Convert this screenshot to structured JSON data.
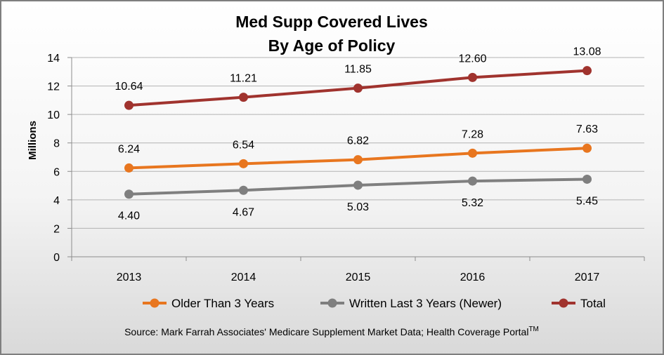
{
  "chart_data": {
    "type": "line",
    "title": "Med Supp Covered Lives",
    "subtitle": "By Age of Policy",
    "ylabel": "Millions",
    "xlabel": "",
    "ylim": [
      0,
      14
    ],
    "yticks": [
      "0",
      "2",
      "4",
      "6",
      "8",
      "10",
      "12",
      "14"
    ],
    "grid": true,
    "legend_position": "bottom",
    "categories": [
      "2013",
      "2014",
      "2015",
      "2016",
      "2017"
    ],
    "series": [
      {
        "name": "Older Than 3 Years",
        "color": "#e8761f",
        "values": [
          6.24,
          6.54,
          6.82,
          7.28,
          7.63
        ],
        "labels": [
          "6.24",
          "6.54",
          "6.82",
          "7.28",
          "7.63"
        ],
        "label_position": "above"
      },
      {
        "name": "Written Last 3 Years (Newer)",
        "color": "#7f7f7f",
        "values": [
          4.4,
          4.67,
          5.03,
          5.32,
          5.45
        ],
        "labels": [
          "4.40",
          "4.67",
          "5.03",
          "5.32",
          "5.45"
        ],
        "label_position": "below"
      },
      {
        "name": "Total",
        "color": "#a0332e",
        "values": [
          10.64,
          11.21,
          11.85,
          12.6,
          13.08
        ],
        "labels": [
          "10.64",
          "11.21",
          "11.85",
          "12.60",
          "13.08"
        ],
        "label_position": "above"
      }
    ],
    "source": {
      "text": "Source:  Mark Farrah Associates' Medicare Supplement Market Data; Health Coverage Portal",
      "superscript": "TM"
    }
  }
}
